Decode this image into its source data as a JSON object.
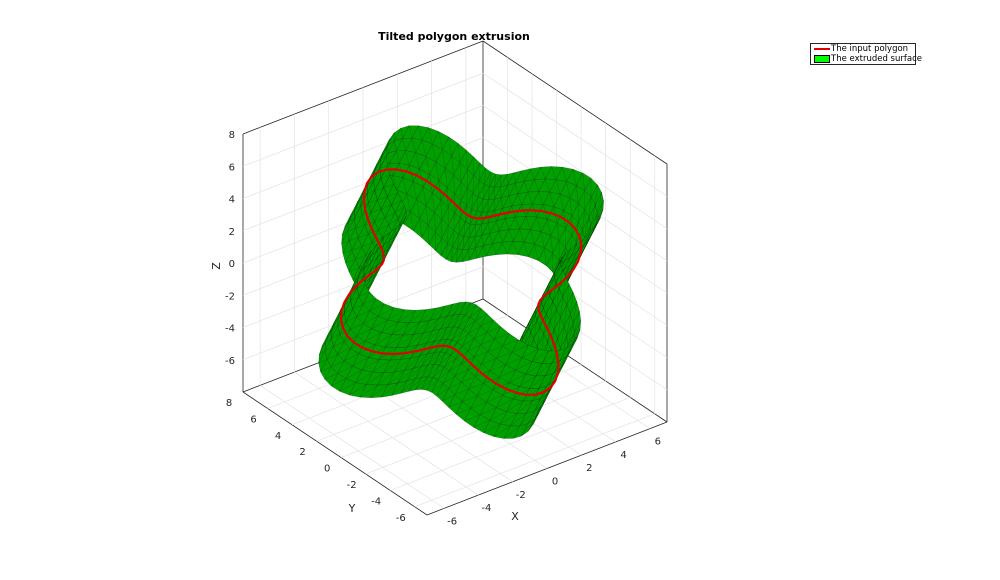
{
  "chart_data": {
    "type": "surface3d",
    "title": "Tilted polygon extrusion",
    "xlabel": "X",
    "ylabel": "Y",
    "zlabel": "Z",
    "xlim": [
      -7,
      7
    ],
    "ylim": [
      -7,
      8
    ],
    "zlim": [
      -8,
      8
    ],
    "xticks": [
      -6,
      -4,
      -2,
      0,
      2,
      4,
      6
    ],
    "yticks": [
      -6,
      -4,
      -2,
      0,
      2,
      4,
      6,
      8
    ],
    "zticks": [
      -6,
      -4,
      -2,
      0,
      2,
      4,
      6,
      8
    ],
    "grid": true,
    "legend": {
      "location": "top-right",
      "entries": [
        {
          "label": "The input polygon",
          "color": "#e00000",
          "kind": "line"
        },
        {
          "label": "The extruded surface",
          "color": "#00ff00",
          "kind": "patch"
        }
      ]
    },
    "surface": {
      "face_color": "#00a000",
      "edge_color": "#000000",
      "extrusion_height": 2.5
    },
    "polygon": {
      "color": "#e00000",
      "lobes": 4,
      "mean_radius": 5.6,
      "lobe_amplitude": 1.6
    }
  }
}
